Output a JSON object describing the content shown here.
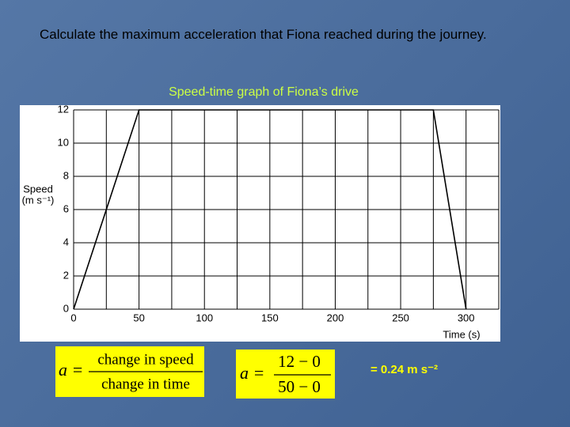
{
  "question": "Calculate the maximum acceleration that Fiona reached during the journey.",
  "chart_data": {
    "type": "line",
    "title": "Speed-time graph of Fiona’s drive",
    "y_label": [
      "Speed",
      "(m s⁻¹)"
    ],
    "x_label": "Time (s)",
    "x": [
      0,
      50,
      275,
      300
    ],
    "values": [
      0,
      12,
      12,
      0
    ],
    "color": "#000000",
    "xlim": [
      0,
      325
    ],
    "ylim": [
      0,
      12
    ],
    "xticks": [
      0,
      50,
      100,
      150,
      200,
      250,
      300
    ],
    "x_minor_ticks": [
      25,
      75,
      125,
      175,
      225,
      275,
      325
    ],
    "yticks": [
      0,
      2,
      4,
      6,
      8,
      10,
      12
    ],
    "grid": true
  },
  "formulas": {
    "general": {
      "lhs": "a =",
      "numerator": "change in speed",
      "denominator": "change in time"
    },
    "substituted": {
      "lhs": "a =",
      "numerator": "12 − 0",
      "denominator": "50 − 0"
    },
    "result": "=  0.24 m s⁻²"
  }
}
